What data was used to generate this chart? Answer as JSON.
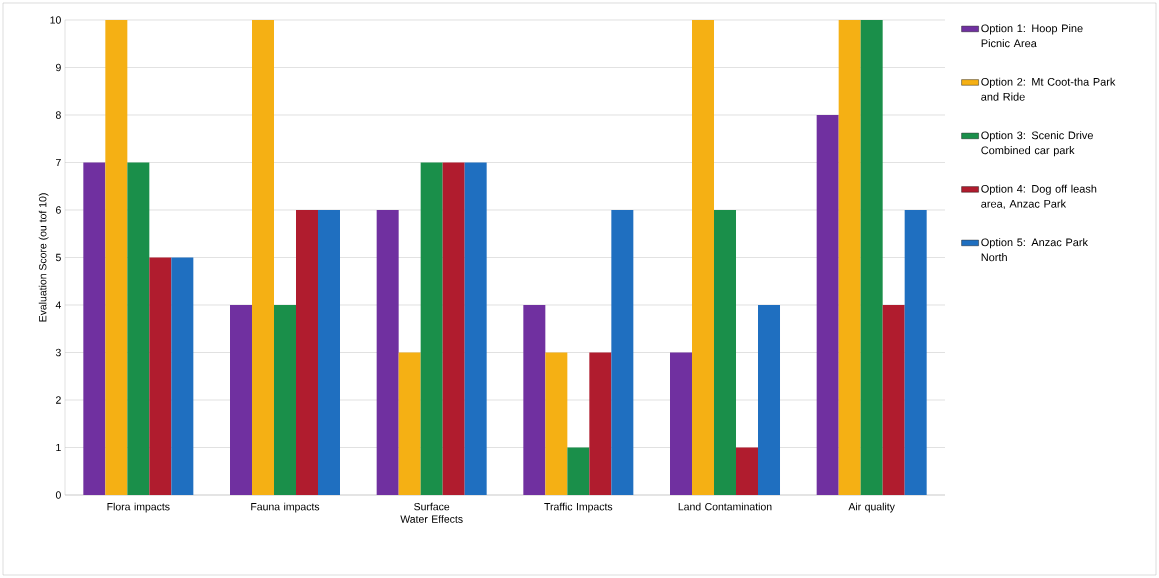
{
  "chart_data": {
    "type": "bar",
    "ylabel": "Evaluation Score (ou tof 10)",
    "categories": [
      "Flora impacts",
      "Fauna impacts",
      "Surface Water Effects",
      "Traffic Impacts",
      "Land Contamination",
      "Air quality"
    ],
    "series": [
      {
        "name": "Option 1: Hoop Pine Picnic Area",
        "color": "#7030a0",
        "values": [
          7,
          4,
          6,
          4,
          3,
          8
        ]
      },
      {
        "name": "Option 2: Mt Coot-tha Park and Ride",
        "color": "#f5b014",
        "values": [
          10,
          10,
          3,
          3,
          10,
          10
        ]
      },
      {
        "name": "Option 3: Scenic Drive Combined car park",
        "color": "#1a8f4a",
        "values": [
          7,
          4,
          7,
          1,
          6,
          10
        ]
      },
      {
        "name": "Option 4: Dog off leash area, Anzac Park",
        "color": "#b01c2e",
        "values": [
          5,
          6,
          7,
          3,
          1,
          4
        ]
      },
      {
        "name": "Option 5: Anzac Park North",
        "color": "#1f6fc0",
        "values": [
          5,
          6,
          7,
          6,
          4,
          6
        ]
      }
    ],
    "ylim": [
      0,
      10
    ],
    "yticks": [
      0,
      1,
      2,
      3,
      4,
      5,
      6,
      7,
      8,
      9,
      10
    ],
    "grid": "y",
    "legend": "right"
  }
}
